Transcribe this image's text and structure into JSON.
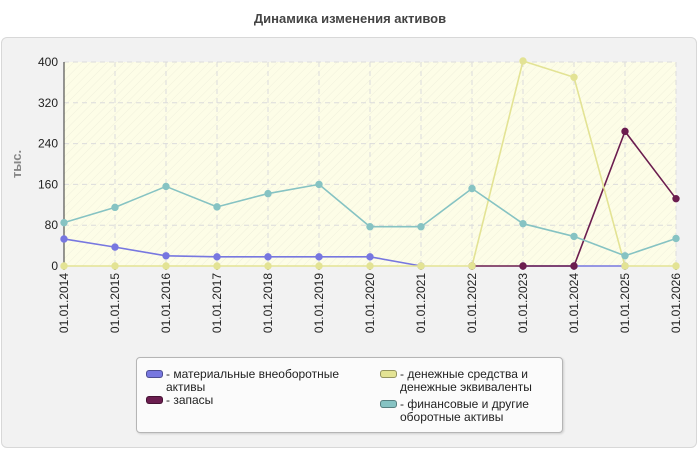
{
  "colors": {
    "materials": "#7777e0",
    "stocks": "#6b1d4f",
    "cash": "#e3e394",
    "financial": "#86c3c3",
    "plot_bg": "#fdfde7",
    "grid": "#dcdcdc"
  },
  "chart_data": {
    "type": "line",
    "title": "Динамика изменения активов",
    "xlabel": "",
    "ylabel": "тыс.",
    "ylim": [
      0,
      400
    ],
    "yticks": [
      0,
      80,
      160,
      240,
      320,
      400
    ],
    "grid": true,
    "legend_position": "bottom",
    "categories": [
      "01.01.2014",
      "01.01.2015",
      "01.01.2016",
      "01.01.2017",
      "01.01.2018",
      "01.01.2019",
      "01.01.2020",
      "01.01.2021",
      "01.01.2022",
      "01.01.2023",
      "01.01.2024",
      "01.01.2025",
      "01.01.2026"
    ],
    "series": [
      {
        "name": "материальные внеоборотные активы",
        "key": "materials",
        "values": [
          53,
          37,
          20,
          18,
          18,
          18,
          18,
          0,
          null,
          0,
          0,
          0,
          null
        ]
      },
      {
        "name": "запасы",
        "key": "stocks",
        "values": [
          null,
          null,
          null,
          null,
          null,
          null,
          null,
          null,
          0,
          0,
          0,
          264,
          132
        ]
      },
      {
        "name": "денежные средства и денежные эквиваленты",
        "key": "cash",
        "values": [
          0,
          0,
          0,
          0,
          0,
          0,
          0,
          0,
          0,
          402,
          370,
          0,
          0
        ]
      },
      {
        "name": "финансовые и другие оборотные активы",
        "key": "financial",
        "values": [
          85,
          115,
          156,
          116,
          142,
          160,
          77,
          77,
          152,
          83,
          58,
          20,
          54
        ]
      }
    ]
  },
  "legend": {
    "items": [
      {
        "label": "- материальные внеоборотные\nактивы",
        "color_key": "materials"
      },
      {
        "label": "- запасы",
        "color_key": "stocks"
      },
      {
        "label": "- денежные средства и\nденежные эквиваленты",
        "color_key": "cash"
      },
      {
        "label": "- финансовые и другие\nоборотные активы",
        "color_key": "financial"
      }
    ]
  }
}
